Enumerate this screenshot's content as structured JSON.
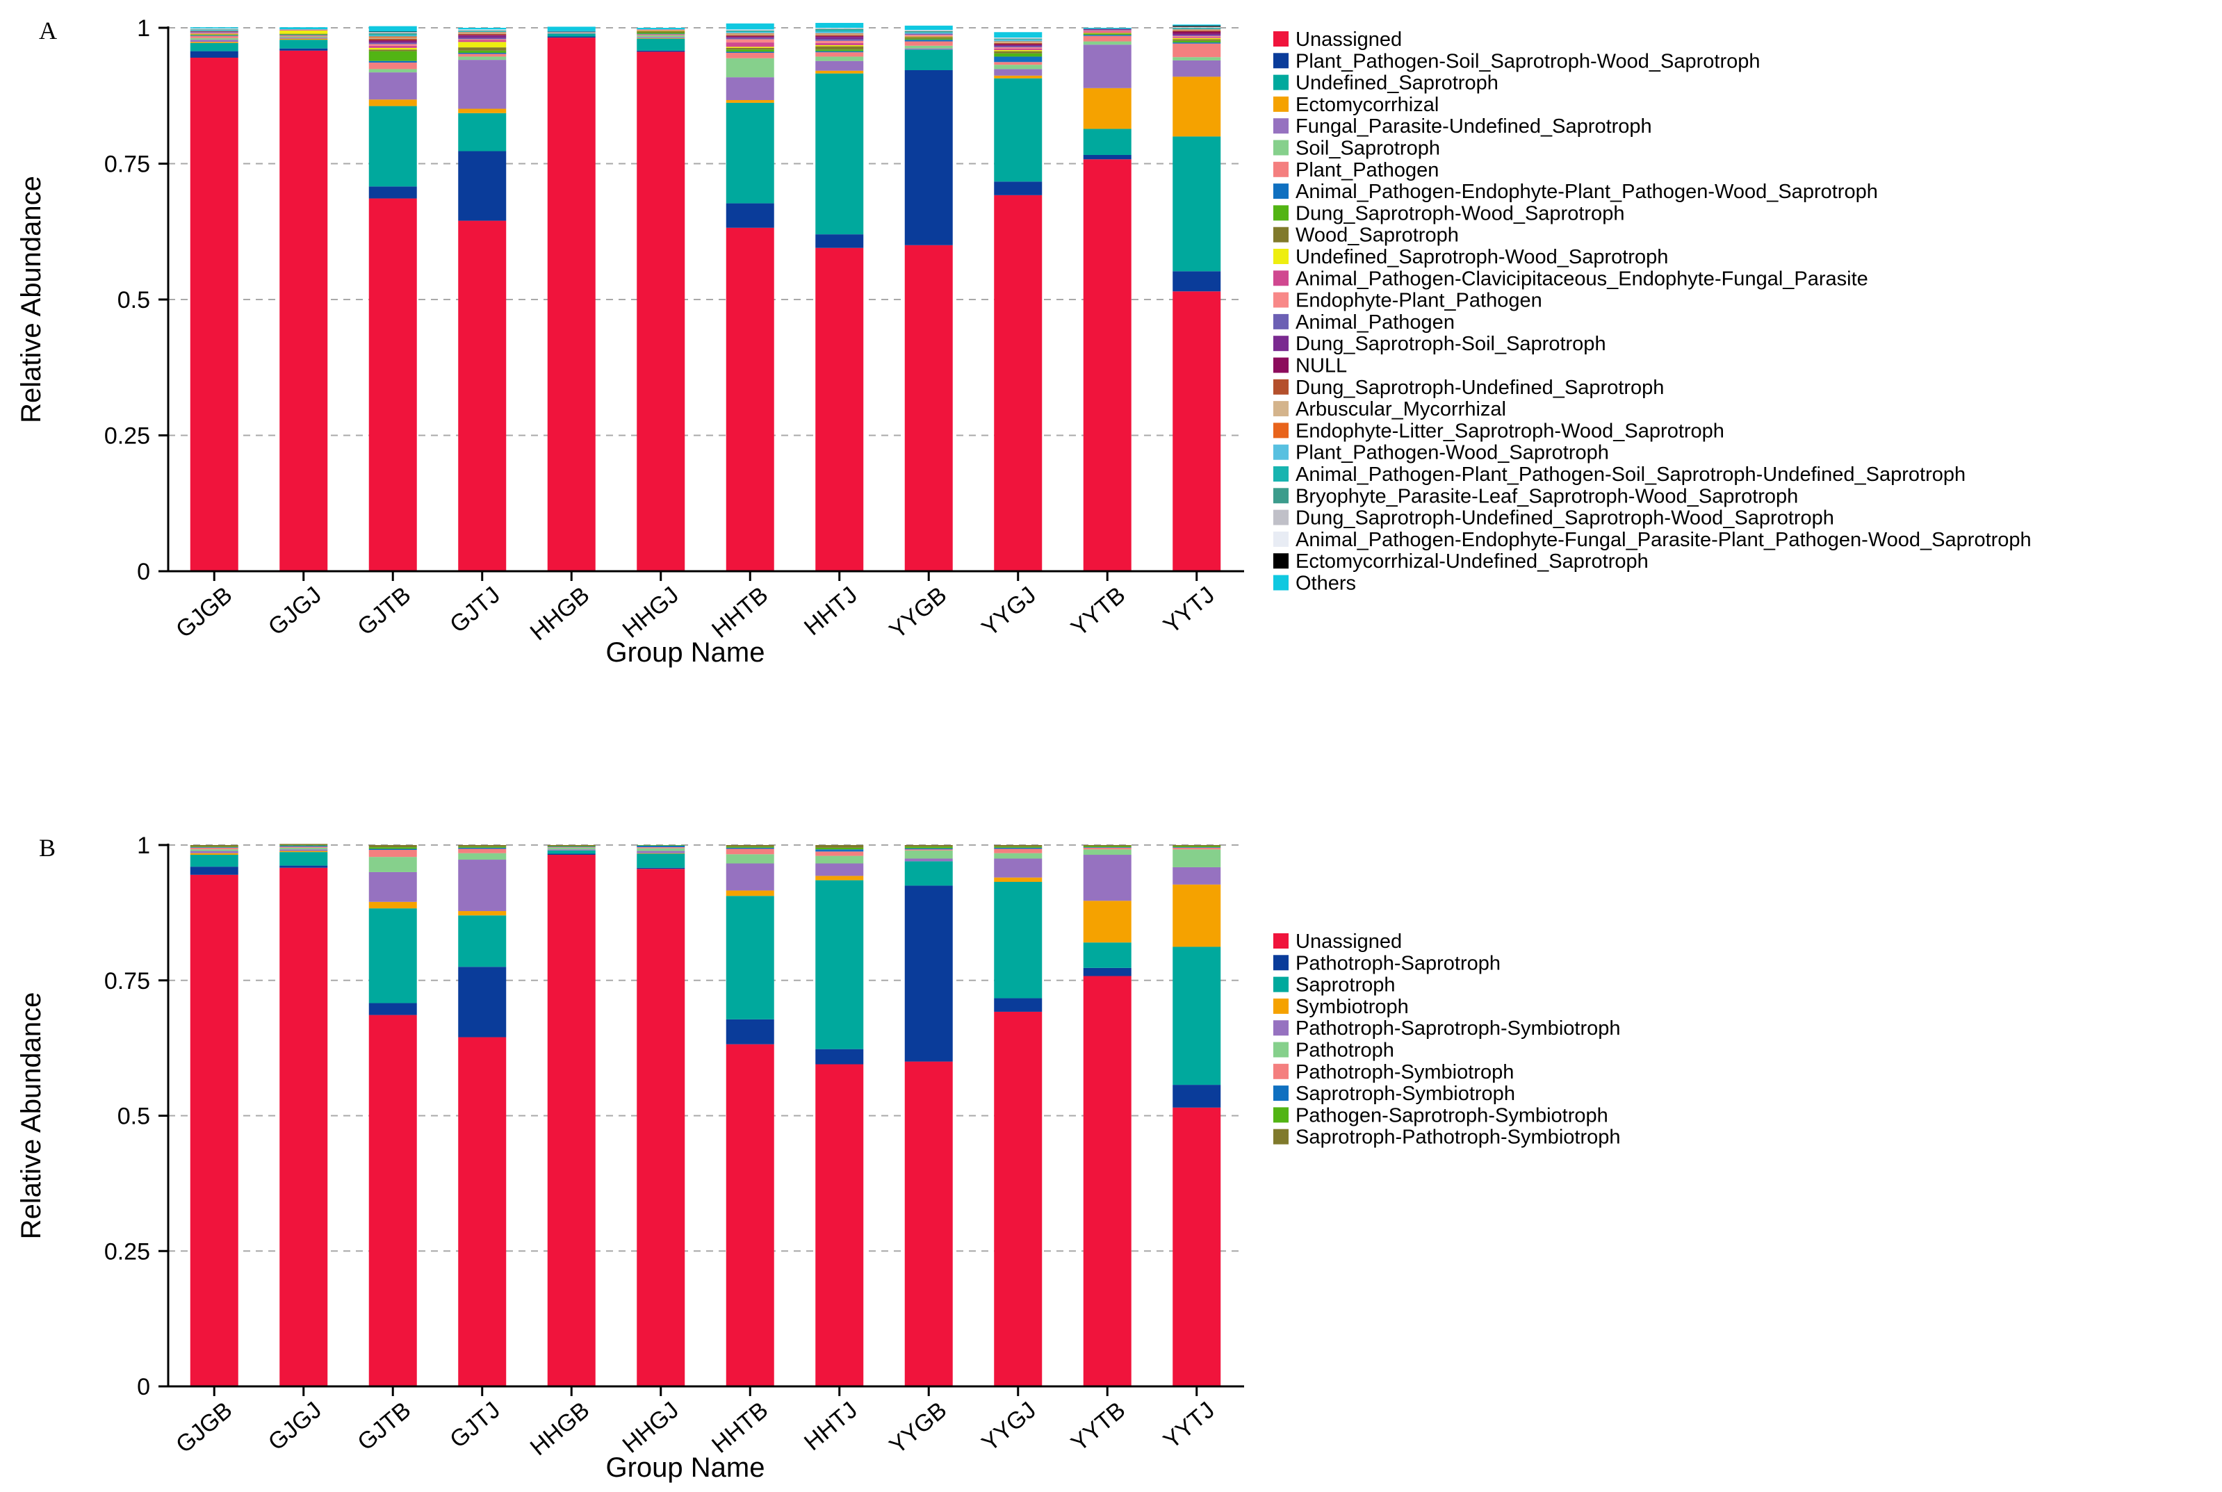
{
  "chart_data": [
    {
      "panel": "A",
      "type": "bar",
      "stacked": true,
      "xlabel": "Group Name",
      "ylabel": "Relative Abundance",
      "ylim": [
        0,
        1
      ],
      "yticks": [
        0,
        0.25,
        0.5,
        0.75,
        1
      ],
      "ytick_labels": [
        "0",
        "0.25",
        "0.5",
        "0.75",
        "1"
      ],
      "categories": [
        "GJGB",
        "GJGJ",
        "GJTB",
        "GJTJ",
        "HHGB",
        "HHGJ",
        "HHTB",
        "HHTJ",
        "YYGB",
        "YYGJ",
        "YYTB",
        "YYTJ"
      ],
      "series": [
        {
          "name": "Unassigned",
          "color": "#f0143c",
          "values": [
            0.945,
            0.958,
            0.686,
            0.645,
            0.982,
            0.956,
            0.632,
            0.595,
            0.6,
            0.692,
            0.758,
            0.515
          ]
        },
        {
          "name": "Plant_Pathogen-Soil_Saprotroph-Wood_Saprotroph",
          "color": "#0a3c9a",
          "values": [
            0.012,
            0.004,
            0.022,
            0.128,
            0.002,
            0.002,
            0.045,
            0.025,
            0.322,
            0.025,
            0.008,
            0.037
          ]
        },
        {
          "name": "Undefined_Saprotroph",
          "color": "#00a99d",
          "values": [
            0.015,
            0.016,
            0.148,
            0.07,
            0.005,
            0.022,
            0.185,
            0.296,
            0.038,
            0.19,
            0.048,
            0.248
          ]
        },
        {
          "name": "Ectomycorrhizal",
          "color": "#f5a200",
          "values": [
            0.002,
            0.002,
            0.012,
            0.008,
            0.0,
            0.001,
            0.005,
            0.005,
            0.0,
            0.005,
            0.075,
            0.11
          ]
        },
        {
          "name": "Fungal_Parasite-Undefined_Saprotroph",
          "color": "#9672c0",
          "values": [
            0.004,
            0.002,
            0.05,
            0.09,
            0.001,
            0.002,
            0.042,
            0.018,
            0.002,
            0.012,
            0.08,
            0.03
          ]
        },
        {
          "name": "Soil_Saprotroph",
          "color": "#86d08c",
          "values": [
            0.003,
            0.002,
            0.006,
            0.006,
            0.001,
            0.003,
            0.035,
            0.008,
            0.005,
            0.008,
            0.006,
            0.006
          ]
        },
        {
          "name": "Plant_Pathogen",
          "color": "#f47f7f",
          "values": [
            0.004,
            0.002,
            0.012,
            0.005,
            0.001,
            0.002,
            0.01,
            0.008,
            0.008,
            0.005,
            0.01,
            0.025
          ]
        },
        {
          "name": "Animal_Pathogen-Endophyte-Plant_Pathogen-Wood_Saprotroph",
          "color": "#1070c0",
          "values": [
            0.001,
            0.001,
            0.003,
            0.002,
            0.001,
            0.001,
            0.002,
            0.002,
            0.003,
            0.01,
            0.002,
            0.002
          ]
        },
        {
          "name": "Dung_Saprotroph-Wood_Saprotroph",
          "color": "#52b414",
          "values": [
            0.001,
            0.001,
            0.018,
            0.004,
            0.0,
            0.002,
            0.004,
            0.003,
            0.002,
            0.006,
            0.002,
            0.003
          ]
        },
        {
          "name": "Wood_Saprotroph",
          "color": "#807a2c",
          "values": [
            0.001,
            0.001,
            0.003,
            0.006,
            0.0,
            0.003,
            0.003,
            0.006,
            0.003,
            0.004,
            0.001,
            0.003
          ]
        },
        {
          "name": "Undefined_Saprotroph-Wood_Saprotroph",
          "color": "#eeee10",
          "values": [
            0.001,
            0.006,
            0.003,
            0.01,
            0.0,
            0.001,
            0.002,
            0.002,
            0.001,
            0.002,
            0.001,
            0.002
          ]
        },
        {
          "name": "Animal_Pathogen-Clavicipitaceous_Endophyte-Fungal_Parasite",
          "color": "#d04890",
          "values": [
            0.001,
            0.001,
            0.004,
            0.003,
            0.0,
            0.001,
            0.008,
            0.004,
            0.001,
            0.003,
            0.002,
            0.002
          ]
        },
        {
          "name": "Endophyte-Plant_Pathogen",
          "color": "#f88888",
          "values": [
            0.001,
            0.001,
            0.003,
            0.002,
            0.0,
            0.001,
            0.006,
            0.004,
            0.002,
            0.002,
            0.002,
            0.002
          ]
        },
        {
          "name": "Animal_Pathogen",
          "color": "#6c60b4",
          "values": [
            0.001,
            0.0,
            0.002,
            0.002,
            0.0,
            0.0,
            0.002,
            0.003,
            0.001,
            0.002,
            0.001,
            0.001
          ]
        },
        {
          "name": "Dung_Saprotroph-Soil_Saprotroph",
          "color": "#7a2a90",
          "values": [
            0.001,
            0.0,
            0.003,
            0.004,
            0.0,
            0.0,
            0.002,
            0.004,
            0.001,
            0.002,
            0.001,
            0.003
          ]
        },
        {
          "name": "NULL",
          "color": "#8c0c5c",
          "values": [
            0.0,
            0.0,
            0.002,
            0.002,
            0.0,
            0.0,
            0.002,
            0.002,
            0.0,
            0.002,
            0.001,
            0.004
          ]
        },
        {
          "name": "Dung_Saprotroph-Undefined_Saprotroph",
          "color": "#b4502c",
          "values": [
            0.001,
            0.0,
            0.003,
            0.002,
            0.0,
            0.0,
            0.002,
            0.002,
            0.0,
            0.002,
            0.0,
            0.002
          ]
        },
        {
          "name": "Arbuscular_Mycorrhizal",
          "color": "#d4b48c",
          "values": [
            0.0,
            0.0,
            0.002,
            0.002,
            0.0,
            0.0,
            0.002,
            0.002,
            0.0,
            0.002,
            0.0,
            0.001
          ]
        },
        {
          "name": "Endophyte-Litter_Saprotroph-Wood_Saprotroph",
          "color": "#e8641c",
          "values": [
            0.0,
            0.0,
            0.002,
            0.001,
            0.0,
            0.0,
            0.001,
            0.001,
            0.0,
            0.001,
            0.0,
            0.001
          ]
        },
        {
          "name": "Plant_Pathogen-Wood_Saprotroph",
          "color": "#58c0e0",
          "values": [
            0.001,
            0.0,
            0.002,
            0.001,
            0.0,
            0.0,
            0.002,
            0.003,
            0.002,
            0.003,
            0.0,
            0.001
          ]
        },
        {
          "name": "Animal_Pathogen-Plant_Pathogen-Soil_Saprotroph-Undefined_Saprotroph",
          "color": "#18b4b0",
          "values": [
            0.001,
            0.0,
            0.002,
            0.001,
            0.0,
            0.0,
            0.002,
            0.003,
            0.001,
            0.001,
            0.0,
            0.001
          ]
        },
        {
          "name": "Bryophyte_Parasite-Leaf_Saprotroph-Wood_Saprotroph",
          "color": "#3c9c8c",
          "values": [
            0.001,
            0.0,
            0.002,
            0.001,
            0.001,
            0.0,
            0.001,
            0.002,
            0.002,
            0.001,
            0.0,
            0.001
          ]
        },
        {
          "name": "Dung_Saprotroph-Undefined_Saprotroph-Wood_Saprotroph",
          "color": "#c0c0c8",
          "values": [
            0.001,
            0.0,
            0.001,
            0.001,
            0.0,
            0.0,
            0.001,
            0.001,
            0.001,
            0.001,
            0.0,
            0.001
          ]
        },
        {
          "name": "Animal_Pathogen-Endophyte-Fungal_Parasite-Plant_Pathogen-Wood_Saprotroph",
          "color": "#e8ecf4",
          "values": [
            0.001,
            0.0,
            0.001,
            0.001,
            0.0,
            0.0,
            0.001,
            0.001,
            0.001,
            0.001,
            0.0,
            0.001
          ]
        },
        {
          "name": "Ectomycorrhizal-Undefined_Saprotroph",
          "color": "#000000",
          "values": [
            0.0,
            0.0,
            0.001,
            0.0,
            0.0,
            0.0,
            0.0,
            0.0,
            0.0,
            0.0,
            0.0,
            0.002
          ]
        },
        {
          "name": "Others",
          "color": "#10c8e0",
          "values": [
            0.002,
            0.004,
            0.01,
            0.003,
            0.008,
            0.003,
            0.011,
            0.009,
            0.008,
            0.01,
            0.002,
            0.002
          ]
        }
      ]
    },
    {
      "panel": "B",
      "type": "bar",
      "stacked": true,
      "xlabel": "Group Name",
      "ylabel": "Relative Abundance",
      "ylim": [
        0,
        1
      ],
      "yticks": [
        0,
        0.25,
        0.5,
        0.75,
        1
      ],
      "ytick_labels": [
        "0",
        "0.25",
        "0.5",
        "0.75",
        "1"
      ],
      "categories": [
        "GJGB",
        "GJGJ",
        "GJTB",
        "GJTJ",
        "HHGB",
        "HHGJ",
        "HHTB",
        "HHTJ",
        "YYGB",
        "YYGJ",
        "YYTB",
        "YYTJ"
      ],
      "series": [
        {
          "name": "Unassigned",
          "color": "#f0143c",
          "values": [
            0.945,
            0.958,
            0.686,
            0.645,
            0.982,
            0.956,
            0.632,
            0.595,
            0.6,
            0.692,
            0.758,
            0.515
          ]
        },
        {
          "name": "Pathotroph-Saprotroph",
          "color": "#0a3c9a",
          "values": [
            0.015,
            0.004,
            0.022,
            0.13,
            0.002,
            0.002,
            0.046,
            0.028,
            0.325,
            0.025,
            0.015,
            0.042
          ]
        },
        {
          "name": "Saprotroph",
          "color": "#00a99d",
          "values": [
            0.022,
            0.025,
            0.175,
            0.095,
            0.006,
            0.026,
            0.228,
            0.312,
            0.045,
            0.215,
            0.047,
            0.255
          ]
        },
        {
          "name": "Symbiotroph",
          "color": "#f5a200",
          "values": [
            0.003,
            0.002,
            0.012,
            0.008,
            0.0,
            0.001,
            0.01,
            0.008,
            0.0,
            0.008,
            0.077,
            0.115
          ]
        },
        {
          "name": "Pathotroph-Saprotroph-Symbiotroph",
          "color": "#9672c0",
          "values": [
            0.004,
            0.003,
            0.055,
            0.095,
            0.002,
            0.004,
            0.05,
            0.023,
            0.005,
            0.035,
            0.085,
            0.032
          ]
        },
        {
          "name": "Pathotroph",
          "color": "#86d08c",
          "values": [
            0.003,
            0.003,
            0.028,
            0.012,
            0.003,
            0.005,
            0.017,
            0.014,
            0.015,
            0.01,
            0.01,
            0.033
          ]
        },
        {
          "name": "Pathotroph-Symbiotroph",
          "color": "#f47f7f",
          "values": [
            0.003,
            0.002,
            0.013,
            0.008,
            0.001,
            0.002,
            0.01,
            0.008,
            0.002,
            0.008,
            0.003,
            0.003
          ]
        },
        {
          "name": "Saprotroph-Symbiotroph",
          "color": "#1070c0",
          "values": [
            0.001,
            0.002,
            0.002,
            0.002,
            0.001,
            0.003,
            0.002,
            0.004,
            0.002,
            0.002,
            0.001,
            0.001
          ]
        },
        {
          "name": "Pathogen-Saprotroph-Symbiotroph",
          "color": "#52b414",
          "values": [
            0.001,
            0.001,
            0.003,
            0.002,
            0.001,
            0.001,
            0.002,
            0.003,
            0.003,
            0.002,
            0.002,
            0.002
          ]
        },
        {
          "name": "Saprotroph-Pathotroph-Symbiotroph",
          "color": "#807a2c",
          "values": [
            0.003,
            0.002,
            0.004,
            0.003,
            0.002,
            0.0,
            0.003,
            0.005,
            0.003,
            0.003,
            0.002,
            0.002
          ]
        }
      ]
    }
  ],
  "panels": [
    {
      "label": "A"
    },
    {
      "label": "B"
    }
  ]
}
